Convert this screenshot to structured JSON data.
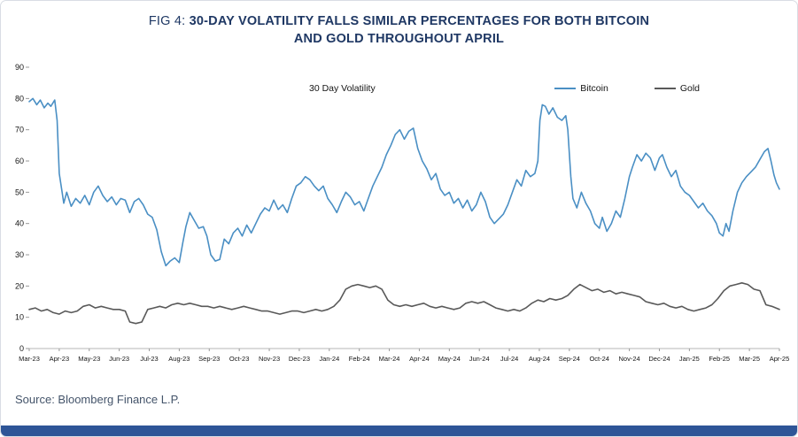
{
  "figure": {
    "title": {
      "prefix": "FIG 4:",
      "line1_rest": "30-DAY VOLATILITY FALLS SIMILAR PERCENTAGES FOR BOTH BITCOIN",
      "line2": "AND GOLD THROUGHOUT APRIL"
    },
    "source": "Source: Bloomberg Finance L.P."
  },
  "colors": {
    "title_navy": "#1f3864",
    "footer_bar": "#2e5597",
    "bitcoin_line": "#4a8fc4",
    "gold_line": "#595959",
    "axis_line": "#b7b7b7",
    "source_text": "#44546a"
  },
  "chart_data": {
    "type": "line",
    "title": "30 Day Volatility",
    "xlabel": "",
    "ylabel": "",
    "ylim": [
      0,
      90
    ],
    "y_ticks": [
      0,
      10,
      20,
      30,
      40,
      50,
      60,
      70,
      80,
      90
    ],
    "grid": false,
    "legend_position": "top-right",
    "x_range": [
      0,
      25
    ],
    "x_tick_labels": [
      "Mar-23",
      "Apr-23",
      "May-23",
      "Jun-23",
      "Jul-23",
      "Aug-23",
      "Sep-23",
      "Oct-23",
      "Nov-23",
      "Dec-23",
      "Jan-24",
      "Feb-24",
      "Mar-24",
      "Apr-24",
      "May-24",
      "Jun-24",
      "Jul-24",
      "Aug-24",
      "Sep-24",
      "Oct-24",
      "Nov-24",
      "Dec-24",
      "Jan-25",
      "Feb-25",
      "Mar-25",
      "Apr-25"
    ],
    "series": [
      {
        "name": "Bitcoin",
        "color": "#4a8fc4",
        "points": [
          [
            0,
            79
          ],
          [
            0.12,
            80
          ],
          [
            0.25,
            78
          ],
          [
            0.37,
            79.5
          ],
          [
            0.5,
            77
          ],
          [
            0.62,
            78.5
          ],
          [
            0.72,
            77.5
          ],
          [
            0.85,
            79.5
          ],
          [
            0.93,
            73
          ],
          [
            1.0,
            56
          ],
          [
            1.08,
            51
          ],
          [
            1.15,
            46.5
          ],
          [
            1.25,
            50
          ],
          [
            1.4,
            45.5
          ],
          [
            1.55,
            48
          ],
          [
            1.7,
            46.5
          ],
          [
            1.85,
            49
          ],
          [
            2.0,
            46
          ],
          [
            2.15,
            50
          ],
          [
            2.3,
            52
          ],
          [
            2.45,
            49
          ],
          [
            2.6,
            47
          ],
          [
            2.75,
            48.5
          ],
          [
            2.9,
            46
          ],
          [
            3.05,
            48
          ],
          [
            3.2,
            47.5
          ],
          [
            3.35,
            43.5
          ],
          [
            3.5,
            47
          ],
          [
            3.65,
            48
          ],
          [
            3.8,
            46
          ],
          [
            3.95,
            43
          ],
          [
            4.1,
            42
          ],
          [
            4.25,
            38
          ],
          [
            4.4,
            31
          ],
          [
            4.55,
            26.5
          ],
          [
            4.7,
            28
          ],
          [
            4.85,
            29
          ],
          [
            5.0,
            27.5
          ],
          [
            5.12,
            34
          ],
          [
            5.22,
            39
          ],
          [
            5.35,
            43.5
          ],
          [
            5.5,
            41
          ],
          [
            5.65,
            38.5
          ],
          [
            5.8,
            39
          ],
          [
            5.92,
            36
          ],
          [
            6.05,
            30
          ],
          [
            6.2,
            28
          ],
          [
            6.35,
            28.5
          ],
          [
            6.5,
            35
          ],
          [
            6.65,
            33.5
          ],
          [
            6.8,
            37
          ],
          [
            6.95,
            38.5
          ],
          [
            7.1,
            36
          ],
          [
            7.25,
            39.5
          ],
          [
            7.4,
            37
          ],
          [
            7.55,
            40
          ],
          [
            7.7,
            43
          ],
          [
            7.85,
            45
          ],
          [
            8.0,
            44
          ],
          [
            8.15,
            47.5
          ],
          [
            8.3,
            44.5
          ],
          [
            8.45,
            46
          ],
          [
            8.6,
            43.5
          ],
          [
            8.75,
            48
          ],
          [
            8.9,
            52
          ],
          [
            9.05,
            53
          ],
          [
            9.2,
            55
          ],
          [
            9.35,
            54
          ],
          [
            9.5,
            52
          ],
          [
            9.65,
            50.5
          ],
          [
            9.8,
            52
          ],
          [
            9.95,
            48
          ],
          [
            10.1,
            46
          ],
          [
            10.25,
            43.5
          ],
          [
            10.4,
            47
          ],
          [
            10.55,
            50
          ],
          [
            10.7,
            48.5
          ],
          [
            10.85,
            46
          ],
          [
            11.0,
            47
          ],
          [
            11.15,
            44
          ],
          [
            11.3,
            48
          ],
          [
            11.45,
            52
          ],
          [
            11.6,
            55
          ],
          [
            11.75,
            58
          ],
          [
            11.9,
            62
          ],
          [
            12.05,
            65
          ],
          [
            12.2,
            68.5
          ],
          [
            12.35,
            70
          ],
          [
            12.5,
            67
          ],
          [
            12.65,
            69.5
          ],
          [
            12.8,
            70.5
          ],
          [
            12.95,
            64
          ],
          [
            13.1,
            60
          ],
          [
            13.25,
            57.5
          ],
          [
            13.4,
            54
          ],
          [
            13.55,
            56
          ],
          [
            13.7,
            51
          ],
          [
            13.85,
            49
          ],
          [
            14.0,
            50
          ],
          [
            14.15,
            46.5
          ],
          [
            14.3,
            48
          ],
          [
            14.45,
            45
          ],
          [
            14.6,
            47.5
          ],
          [
            14.75,
            44
          ],
          [
            14.9,
            46
          ],
          [
            15.05,
            50
          ],
          [
            15.2,
            47
          ],
          [
            15.35,
            42
          ],
          [
            15.5,
            40
          ],
          [
            15.65,
            41.5
          ],
          [
            15.8,
            43
          ],
          [
            15.95,
            46
          ],
          [
            16.1,
            50
          ],
          [
            16.25,
            54
          ],
          [
            16.4,
            52
          ],
          [
            16.55,
            57
          ],
          [
            16.7,
            55
          ],
          [
            16.85,
            56
          ],
          [
            16.95,
            60
          ],
          [
            17.02,
            73
          ],
          [
            17.1,
            78
          ],
          [
            17.2,
            77.5
          ],
          [
            17.32,
            75
          ],
          [
            17.45,
            77
          ],
          [
            17.6,
            74
          ],
          [
            17.75,
            73
          ],
          [
            17.88,
            74.5
          ],
          [
            17.95,
            70
          ],
          [
            18.05,
            55
          ],
          [
            18.12,
            48
          ],
          [
            18.25,
            45
          ],
          [
            18.4,
            50
          ],
          [
            18.55,
            46.5
          ],
          [
            18.7,
            44
          ],
          [
            18.85,
            40
          ],
          [
            19.0,
            38.5
          ],
          [
            19.1,
            42
          ],
          [
            19.25,
            37.5
          ],
          [
            19.4,
            40
          ],
          [
            19.55,
            44
          ],
          [
            19.7,
            42
          ],
          [
            19.85,
            48
          ],
          [
            20.0,
            55
          ],
          [
            20.1,
            58
          ],
          [
            20.25,
            62
          ],
          [
            20.4,
            60
          ],
          [
            20.55,
            62.5
          ],
          [
            20.7,
            61
          ],
          [
            20.85,
            57
          ],
          [
            21.0,
            61
          ],
          [
            21.1,
            62
          ],
          [
            21.25,
            58
          ],
          [
            21.4,
            55
          ],
          [
            21.55,
            57
          ],
          [
            21.7,
            52
          ],
          [
            21.85,
            50
          ],
          [
            22.0,
            49
          ],
          [
            22.15,
            47
          ],
          [
            22.3,
            45
          ],
          [
            22.45,
            46.5
          ],
          [
            22.6,
            44
          ],
          [
            22.75,
            42.5
          ],
          [
            22.9,
            40
          ],
          [
            23.0,
            37
          ],
          [
            23.12,
            36
          ],
          [
            23.22,
            40
          ],
          [
            23.32,
            37.5
          ],
          [
            23.45,
            44
          ],
          [
            23.6,
            50
          ],
          [
            23.75,
            53
          ],
          [
            23.9,
            55
          ],
          [
            24.05,
            56.5
          ],
          [
            24.2,
            58
          ],
          [
            24.35,
            60.5
          ],
          [
            24.5,
            63
          ],
          [
            24.62,
            64
          ],
          [
            24.72,
            60
          ],
          [
            24.82,
            55.5
          ],
          [
            24.9,
            53
          ],
          [
            25.0,
            51
          ]
        ]
      },
      {
        "name": "Gold",
        "color": "#595959",
        "points": [
          [
            0,
            12.5
          ],
          [
            0.2,
            13
          ],
          [
            0.4,
            12
          ],
          [
            0.6,
            12.5
          ],
          [
            0.8,
            11.5
          ],
          [
            1.0,
            11
          ],
          [
            1.2,
            12
          ],
          [
            1.4,
            11.5
          ],
          [
            1.6,
            12
          ],
          [
            1.8,
            13.5
          ],
          [
            2.0,
            14
          ],
          [
            2.2,
            13
          ],
          [
            2.4,
            13.5
          ],
          [
            2.6,
            13
          ],
          [
            2.8,
            12.5
          ],
          [
            3.0,
            12.5
          ],
          [
            3.2,
            12
          ],
          [
            3.35,
            8.5
          ],
          [
            3.55,
            8
          ],
          [
            3.75,
            8.5
          ],
          [
            3.95,
            12.5
          ],
          [
            4.15,
            13
          ],
          [
            4.35,
            13.5
          ],
          [
            4.55,
            13
          ],
          [
            4.75,
            14
          ],
          [
            4.95,
            14.5
          ],
          [
            5.15,
            14
          ],
          [
            5.35,
            14.5
          ],
          [
            5.55,
            14
          ],
          [
            5.75,
            13.5
          ],
          [
            5.95,
            13.5
          ],
          [
            6.15,
            13
          ],
          [
            6.35,
            13.5
          ],
          [
            6.55,
            13
          ],
          [
            6.75,
            12.5
          ],
          [
            6.95,
            13
          ],
          [
            7.15,
            13.5
          ],
          [
            7.35,
            13
          ],
          [
            7.55,
            12.5
          ],
          [
            7.75,
            12
          ],
          [
            7.95,
            12
          ],
          [
            8.15,
            11.5
          ],
          [
            8.35,
            11
          ],
          [
            8.55,
            11.5
          ],
          [
            8.75,
            12
          ],
          [
            8.95,
            12
          ],
          [
            9.15,
            11.5
          ],
          [
            9.35,
            12
          ],
          [
            9.55,
            12.5
          ],
          [
            9.75,
            12
          ],
          [
            9.95,
            12.5
          ],
          [
            10.15,
            13.5
          ],
          [
            10.35,
            15.5
          ],
          [
            10.55,
            19
          ],
          [
            10.75,
            20
          ],
          [
            10.95,
            20.5
          ],
          [
            11.15,
            20
          ],
          [
            11.35,
            19.5
          ],
          [
            11.55,
            20
          ],
          [
            11.75,
            19
          ],
          [
            11.95,
            15.5
          ],
          [
            12.15,
            14
          ],
          [
            12.35,
            13.5
          ],
          [
            12.55,
            14
          ],
          [
            12.75,
            13.5
          ],
          [
            12.95,
            14
          ],
          [
            13.15,
            14.5
          ],
          [
            13.35,
            13.5
          ],
          [
            13.55,
            13
          ],
          [
            13.75,
            13.5
          ],
          [
            13.95,
            13
          ],
          [
            14.15,
            12.5
          ],
          [
            14.35,
            13
          ],
          [
            14.55,
            14.5
          ],
          [
            14.75,
            15
          ],
          [
            14.95,
            14.5
          ],
          [
            15.15,
            15
          ],
          [
            15.35,
            14
          ],
          [
            15.55,
            13
          ],
          [
            15.75,
            12.5
          ],
          [
            15.95,
            12
          ],
          [
            16.15,
            12.5
          ],
          [
            16.35,
            12
          ],
          [
            16.55,
            13
          ],
          [
            16.75,
            14.5
          ],
          [
            16.95,
            15.5
          ],
          [
            17.15,
            15
          ],
          [
            17.35,
            16
          ],
          [
            17.55,
            15.5
          ],
          [
            17.75,
            16
          ],
          [
            17.95,
            17
          ],
          [
            18.15,
            19
          ],
          [
            18.35,
            20.5
          ],
          [
            18.55,
            19.5
          ],
          [
            18.75,
            18.5
          ],
          [
            18.95,
            19
          ],
          [
            19.15,
            18
          ],
          [
            19.35,
            18.5
          ],
          [
            19.55,
            17.5
          ],
          [
            19.75,
            18
          ],
          [
            19.95,
            17.5
          ],
          [
            20.15,
            17
          ],
          [
            20.35,
            16.5
          ],
          [
            20.55,
            15
          ],
          [
            20.75,
            14.5
          ],
          [
            20.95,
            14
          ],
          [
            21.15,
            14.5
          ],
          [
            21.35,
            13.5
          ],
          [
            21.55,
            13
          ],
          [
            21.75,
            13.5
          ],
          [
            21.95,
            12.5
          ],
          [
            22.15,
            12
          ],
          [
            22.35,
            12.5
          ],
          [
            22.55,
            13
          ],
          [
            22.75,
            14
          ],
          [
            22.95,
            16
          ],
          [
            23.15,
            18.5
          ],
          [
            23.35,
            20
          ],
          [
            23.55,
            20.5
          ],
          [
            23.75,
            21
          ],
          [
            23.95,
            20.5
          ],
          [
            24.15,
            19
          ],
          [
            24.35,
            18.5
          ],
          [
            24.55,
            14
          ],
          [
            24.75,
            13.5
          ],
          [
            25.0,
            12.5
          ]
        ]
      }
    ]
  }
}
